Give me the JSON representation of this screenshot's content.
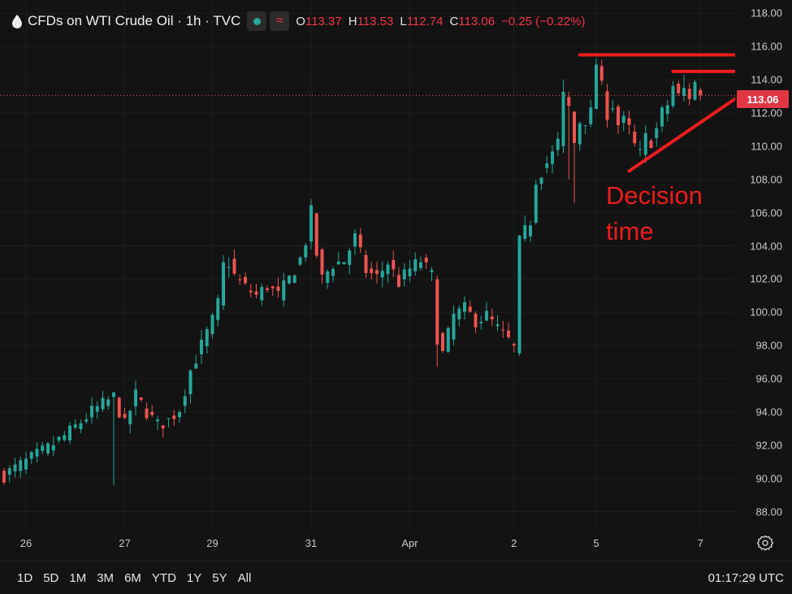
{
  "legend": {
    "symbol": "CFDs on WTI Crude Oil · 1h · TVC",
    "o_label": "O",
    "o_value": "113.37",
    "h_label": "H",
    "h_value": "113.53",
    "l_label": "L",
    "l_value": "112.74",
    "c_label": "C",
    "c_value": "113.06",
    "change": "−0.25 (−0.22%)",
    "market_status_icon": "market-open-dot-icon",
    "indicator_icon": "wave-indicator-icon"
  },
  "current_price": "113.06",
  "annotation": {
    "line1": "Decision",
    "line2": "time"
  },
  "toolbar": {
    "ranges": [
      "1D",
      "5D",
      "1M",
      "3M",
      "6M",
      "YTD",
      "1Y",
      "5Y",
      "All"
    ],
    "clock": "01:17:29 UTC"
  },
  "colors": {
    "up": "#26a69a",
    "down": "#ef5350",
    "annotation": "#ee1d1d",
    "background": "#131313"
  },
  "chart_data": {
    "type": "candlestick",
    "title": "CFDs on WTI Crude Oil · 1h · TVC",
    "ylim": [
      87,
      118.8
    ],
    "y_ticks": [
      "88.00",
      "90.00",
      "92.00",
      "94.00",
      "96.00",
      "98.00",
      "100.00",
      "102.00",
      "104.00",
      "106.00",
      "108.00",
      "110.00",
      "112.00",
      "114.00",
      "116.00",
      "118.00"
    ],
    "x_ticks": [
      "26",
      "27",
      "29",
      "31",
      "Apr",
      "2",
      "5",
      "7"
    ],
    "grid": true,
    "close_path": [
      [
        0,
        90.2
      ],
      [
        4,
        91.0
      ],
      [
        8,
        91.8
      ],
      [
        12,
        92.8
      ],
      [
        16,
        94.0
      ],
      [
        20,
        94.9
      ],
      [
        22,
        93.2
      ],
      [
        24,
        95.0
      ],
      [
        26,
        94.0
      ],
      [
        28,
        93.2
      ],
      [
        30,
        93.5
      ],
      [
        32,
        94.2
      ],
      [
        34,
        96.5
      ],
      [
        36,
        98.0
      ],
      [
        38,
        99.5
      ],
      [
        39,
        100.5
      ],
      [
        40,
        102.8
      ],
      [
        41,
        103.0
      ],
      [
        42,
        102.2
      ],
      [
        44,
        101.5
      ],
      [
        46,
        101.0
      ],
      [
        48,
        101.6
      ],
      [
        50,
        101.0
      ],
      [
        52,
        102.0
      ],
      [
        54,
        103.2
      ],
      [
        55,
        104.3
      ],
      [
        56,
        106.0
      ],
      [
        57,
        103.5
      ],
      [
        58,
        102.0
      ],
      [
        60,
        102.9
      ],
      [
        62,
        103.1
      ],
      [
        64,
        104.5
      ],
      [
        66,
        102.5
      ],
      [
        68,
        102.1
      ],
      [
        70,
        103.0
      ],
      [
        72,
        101.8
      ],
      [
        74,
        102.6
      ],
      [
        76,
        103.1
      ],
      [
        78,
        102.2
      ],
      [
        79,
        98.5
      ],
      [
        80,
        97.5
      ],
      [
        82,
        99.8
      ],
      [
        84,
        100.2
      ],
      [
        86,
        99.5
      ],
      [
        88,
        99.8
      ],
      [
        90,
        99.0
      ],
      [
        92,
        98.3
      ],
      [
        93,
        97.8
      ],
      [
        94,
        104.2
      ],
      [
        96,
        105.5
      ],
      [
        97,
        108.0
      ],
      [
        100,
        109.5
      ],
      [
        101,
        110.2
      ],
      [
        102,
        113.0
      ],
      [
        103,
        112.3
      ],
      [
        104,
        110.2
      ],
      [
        105,
        111.5
      ],
      [
        106,
        111.6
      ],
      [
        107,
        112.0
      ],
      [
        108,
        115.0
      ],
      [
        110,
        112.0
      ],
      [
        111,
        112.5
      ],
      [
        112,
        111.3
      ],
      [
        113,
        111.5
      ],
      [
        114,
        111.0
      ],
      [
        115,
        110.0
      ],
      [
        116,
        109.5
      ],
      [
        117,
        110.5
      ],
      [
        118,
        110.3
      ],
      [
        119,
        111.0
      ],
      [
        120,
        112.0
      ],
      [
        121,
        112.5
      ],
      [
        122,
        113.6
      ],
      [
        123,
        113.0
      ],
      [
        124,
        113.4
      ],
      [
        125,
        113.0
      ],
      [
        126,
        113.8
      ],
      [
        127,
        113.06
      ]
    ],
    "x_label_bars": [
      4,
      22,
      38,
      56,
      74,
      93,
      108,
      127
    ],
    "spikes": [
      {
        "bar": 20,
        "low": 89.6
      },
      {
        "bar": 79,
        "low": 96.7
      },
      {
        "bar": 93,
        "low": 97.6
      },
      {
        "bar": 104,
        "low": 106.6
      },
      {
        "bar": 103,
        "low": 108.0
      },
      {
        "bar": 56,
        "high": 106.8
      },
      {
        "bar": 102,
        "high": 114.0
      },
      {
        "bar": 108,
        "high": 115.3
      },
      {
        "bar": 124,
        "high": 114.3
      }
    ],
    "last_bar": {
      "open": 113.37,
      "high": 113.53,
      "low": 112.74,
      "close": 113.06
    },
    "drawings": [
      {
        "type": "horizontal-line",
        "price": 115.5,
        "from_bar": 105,
        "to_bar": 134
      },
      {
        "type": "horizontal-line",
        "price": 114.5,
        "from_bar": 122,
        "to_bar": 134
      },
      {
        "type": "trend-line",
        "from": {
          "bar": 114,
          "price": 108.5
        },
        "to": {
          "bar": 134,
          "price": 113.0
        }
      }
    ]
  }
}
